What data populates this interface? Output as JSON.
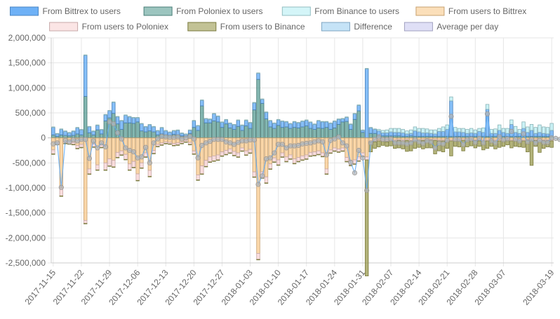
{
  "chart_data": {
    "type": "bar",
    "title": "",
    "xlabel": "",
    "ylabel": "",
    "ylim": [
      -2500000,
      2000000
    ],
    "y_ticks": [
      -2500000,
      -2000000,
      -1500000,
      -1000000,
      -500000,
      0,
      500000,
      1000000,
      1500000,
      2000000
    ],
    "y_tick_labels": [
      "-2,500,000",
      "-2,000,000",
      "-1,500,000",
      "-1,000,000",
      "-500,000",
      "0",
      "500,000",
      "1,000,000",
      "1,500,000",
      "2,000,000"
    ],
    "x_tick_labels": [
      "2017-11-15",
      "2017-11-22",
      "2017-11-29",
      "2017-12-06",
      "2017-12-13",
      "2017-12-20",
      "2017-12-27",
      "2018-01-03",
      "2018-01-10",
      "2018-01-17",
      "2018-01-24",
      "2018-01-31",
      "2018-02-07",
      "2018-02-14",
      "2018-02-21",
      "2018-02-28",
      "2018-03-07",
      "2018-03-19"
    ],
    "x_tick_days": [
      0,
      7,
      14,
      21,
      28,
      35,
      42,
      49,
      56,
      63,
      70,
      77,
      84,
      91,
      98,
      105,
      112,
      124
    ],
    "start_date": "2017-11-15",
    "days": 125,
    "grid": true,
    "legend_position": "top",
    "colors": {
      "from_bittrex": "#5ea9f5",
      "from_poloniex": "#5a9e95",
      "from_binance": "#b8eef3",
      "to_bittrex": "#f9c98c",
      "to_poloniex": "#f9d3d3",
      "to_binance": "#9a9a4e",
      "difference": "#9fd0f2",
      "average": "#c9c9f0",
      "difference_line": "#5ea9f5",
      "difference_point": "#b5b5b5"
    },
    "legend": [
      {
        "key": "from_bittrex",
        "label": "From Bittrex to users"
      },
      {
        "key": "from_poloniex",
        "label": "From Poloniex to users"
      },
      {
        "key": "from_binance",
        "label": "From Binance to users"
      },
      {
        "key": "to_bittrex",
        "label": "From users to Bittrex"
      },
      {
        "key": "to_poloniex",
        "label": "From users to Poloniex"
      },
      {
        "key": "to_binance",
        "label": "From users to Binance"
      },
      {
        "key": "difference",
        "label": "Difference"
      },
      {
        "key": "average",
        "label": "Average per day"
      }
    ],
    "series": [
      {
        "name": "From Bittrex to users",
        "key": "from_bittrex",
        "values": [
          150000,
          50000,
          110000,
          80000,
          60000,
          80000,
          120000,
          100000,
          820000,
          120000,
          70000,
          90000,
          80000,
          120000,
          140000,
          220000,
          140000,
          170000,
          150000,
          120000,
          110000,
          80000,
          140000,
          100000,
          120000,
          100000,
          80000,
          120000,
          80000,
          60000,
          70000,
          90000,
          50000,
          40000,
          60000,
          130000,
          90000,
          110000,
          80000,
          70000,
          140000,
          110000,
          100000,
          80000,
          90000,
          90000,
          120000,
          100000,
          110000,
          110000,
          140000,
          120000,
          80000,
          130000,
          120000,
          100000,
          110000,
          120000,
          100000,
          90000,
          110000,
          100000,
          110000,
          110000,
          120000,
          100000,
          140000,
          130000,
          110000,
          120000,
          130000,
          100000,
          60000,
          80000,
          100000,
          110000,
          110000,
          40000,
          1380000,
          110000,
          80000,
          100000,
          60000,
          60000,
          80000,
          70000,
          70000,
          70000,
          50000,
          50000,
          110000,
          90000,
          70000,
          70000,
          60000,
          50000,
          100000,
          100000,
          140000,
          710000,
          90000,
          90000,
          80000,
          60000,
          70000,
          60000,
          100000,
          80000,
          540000,
          60000,
          60000,
          120000,
          80000,
          60000,
          240000,
          80000,
          60000,
          160000,
          80000,
          120000,
          60000,
          80000,
          60000,
          50000,
          120000,
          150000,
          100000,
          150000
        ]
      },
      {
        "name": "From Poloniex to users",
        "key": "from_poloniex",
        "values": [
          60000,
          30000,
          60000,
          50000,
          40000,
          50000,
          80000,
          60000,
          830000,
          100000,
          60000,
          160000,
          80000,
          340000,
          400000,
          490000,
          280000,
          170000,
          300000,
          300000,
          290000,
          320000,
          140000,
          120000,
          140000,
          120000,
          60000,
          80000,
          60000,
          50000,
          70000,
          60000,
          40000,
          30000,
          90000,
          210000,
          150000,
          640000,
          300000,
          300000,
          340000,
          320000,
          210000,
          280000,
          200000,
          170000,
          230000,
          150000,
          240000,
          190000,
          560000,
          1170000,
          690000,
          380000,
          220000,
          190000,
          250000,
          210000,
          220000,
          190000,
          210000,
          200000,
          220000,
          240000,
          190000,
          170000,
          200000,
          190000,
          210000,
          170000,
          200000,
          270000,
          320000,
          330000,
          170000,
          370000,
          540000,
          110000,
          0,
          90000,
          90000,
          40000,
          40000,
          40000,
          40000,
          40000,
          40000,
          30000,
          30000,
          40000,
          30000,
          30000,
          30000,
          30000,
          30000,
          30000,
          30000,
          30000,
          30000,
          30000,
          30000,
          30000,
          30000,
          30000,
          30000,
          30000,
          30000,
          30000,
          30000,
          30000,
          30000,
          30000,
          30000,
          30000,
          30000,
          30000,
          30000,
          30000,
          30000,
          30000,
          30000,
          30000,
          30000,
          30000,
          30000,
          30000,
          30000,
          30000
        ]
      },
      {
        "name": "From Binance to users",
        "key": "from_binance",
        "values": [
          10000,
          10000,
          10000,
          10000,
          10000,
          10000,
          10000,
          10000,
          10000,
          10000,
          10000,
          10000,
          10000,
          10000,
          10000,
          10000,
          10000,
          10000,
          10000,
          10000,
          10000,
          10000,
          10000,
          10000,
          10000,
          10000,
          10000,
          10000,
          10000,
          10000,
          10000,
          10000,
          10000,
          10000,
          10000,
          10000,
          10000,
          10000,
          10000,
          10000,
          10000,
          10000,
          10000,
          10000,
          10000,
          10000,
          10000,
          10000,
          10000,
          10000,
          10000,
          10000,
          10000,
          10000,
          10000,
          10000,
          10000,
          10000,
          10000,
          10000,
          10000,
          10000,
          10000,
          10000,
          10000,
          10000,
          10000,
          10000,
          10000,
          10000,
          10000,
          10000,
          10000,
          10000,
          10000,
          10000,
          10000,
          10000,
          10000,
          10000,
          10000,
          30000,
          50000,
          60000,
          70000,
          80000,
          80000,
          70000,
          60000,
          70000,
          80000,
          70000,
          90000,
          80000,
          70000,
          80000,
          60000,
          90000,
          90000,
          80000,
          90000,
          70000,
          80000,
          80000,
          90000,
          70000,
          60000,
          90000,
          100000,
          80000,
          90000,
          110000,
          80000,
          100000,
          90000,
          120000,
          80000,
          130000,
          110000,
          120000,
          120000,
          150000,
          130000,
          130000,
          140000,
          110000,
          100000,
          130000,
          140000
        ]
      },
      {
        "name": "From users to Bittrex",
        "key": "to_bittrex",
        "values": [
          -240000,
          -90000,
          -1000000,
          -70000,
          -80000,
          -90000,
          -150000,
          -130000,
          -1650000,
          -620000,
          -120000,
          -540000,
          -130000,
          -500000,
          -420000,
          -450000,
          -290000,
          -260000,
          -330000,
          -520000,
          -470000,
          -720000,
          -500000,
          -300000,
          -650000,
          -250000,
          -130000,
          -100000,
          -80000,
          -90000,
          -110000,
          -100000,
          -80000,
          -50000,
          -90000,
          -260000,
          -740000,
          -560000,
          -450000,
          -380000,
          -360000,
          -340000,
          -280000,
          -250000,
          -220000,
          -270000,
          -300000,
          -200000,
          -260000,
          -230000,
          -680000,
          -2310000,
          -680000,
          -780000,
          -520000,
          -400000,
          -440000,
          -300000,
          -380000,
          -340000,
          -420000,
          -390000,
          -360000,
          -340000,
          -290000,
          -280000,
          -260000,
          -300000,
          -620000,
          -240000,
          -200000,
          -220000,
          -200000,
          -390000,
          -460000,
          -440000,
          -380000,
          -300000,
          -380000,
          -60000,
          -60000,
          -40000,
          -50000,
          -60000,
          -40000,
          -40000,
          -30000,
          -40000,
          -30000,
          -50000,
          -40000,
          -40000,
          -30000,
          -30000,
          -30000,
          -30000,
          -40000,
          -40000,
          -40000,
          -40000,
          -40000,
          -40000,
          -30000,
          -30000,
          -40000,
          -40000,
          -40000,
          -40000,
          -40000,
          -30000,
          -40000,
          -40000,
          -40000,
          -30000,
          -40000,
          -40000,
          -40000,
          -40000,
          -30000,
          -30000,
          -30000,
          -40000,
          -40000,
          -40000,
          -40000,
          -30000,
          -30000,
          -40000
        ]
      },
      {
        "name": "From users to Poloniex",
        "key": "to_poloniex",
        "values": [
          -80000,
          -40000,
          -160000,
          -40000,
          -40000,
          -40000,
          -60000,
          -60000,
          -60000,
          -100000,
          -60000,
          -100000,
          -60000,
          -140000,
          -140000,
          -130000,
          -100000,
          -80000,
          -100000,
          -120000,
          -120000,
          -130000,
          -100000,
          -80000,
          -120000,
          -60000,
          -40000,
          -40000,
          -30000,
          -30000,
          -40000,
          -40000,
          -30000,
          -30000,
          -40000,
          -60000,
          -100000,
          -160000,
          -120000,
          -100000,
          -100000,
          -100000,
          -80000,
          -80000,
          -80000,
          -80000,
          -80000,
          -60000,
          -80000,
          -70000,
          -100000,
          -120000,
          -120000,
          -120000,
          -100000,
          -80000,
          -100000,
          -80000,
          -90000,
          -80000,
          -90000,
          -80000,
          -80000,
          -80000,
          -70000,
          -70000,
          -70000,
          -70000,
          -100000,
          -60000,
          -60000,
          -60000,
          -60000,
          -80000,
          -90000,
          -80000,
          -80000,
          -70000,
          -60000,
          -20000,
          -20000,
          -20000,
          -20000,
          -20000,
          -20000,
          -20000,
          -20000,
          -20000,
          -20000,
          -20000,
          -20000,
          -20000,
          -20000,
          -20000,
          -20000,
          -20000,
          -20000,
          -20000,
          -20000,
          -20000,
          -20000,
          -20000,
          -20000,
          -20000,
          -20000,
          -20000,
          -20000,
          -20000,
          -20000,
          -20000,
          -20000,
          -20000,
          -20000,
          -20000,
          -20000,
          -20000,
          -20000,
          -20000,
          -20000,
          -20000,
          -20000,
          -20000,
          -20000,
          -20000,
          -20000
        ]
      },
      {
        "name": "From users to Binance",
        "key": "to_binance",
        "values": [
          -10000,
          -10000,
          -10000,
          -10000,
          -10000,
          -10000,
          -10000,
          -10000,
          -10000,
          -10000,
          -10000,
          -10000,
          -10000,
          -10000,
          -10000,
          -10000,
          -10000,
          -10000,
          -10000,
          -10000,
          -10000,
          -10000,
          -10000,
          -10000,
          -10000,
          -10000,
          -10000,
          -10000,
          -10000,
          -10000,
          -10000,
          -10000,
          -10000,
          -10000,
          -10000,
          -10000,
          -10000,
          -10000,
          -10000,
          -10000,
          -10000,
          -10000,
          -10000,
          -10000,
          -10000,
          -10000,
          -10000,
          -10000,
          -10000,
          -10000,
          -10000,
          -10000,
          -10000,
          -10000,
          -10000,
          -10000,
          -10000,
          -10000,
          -10000,
          -10000,
          -10000,
          -10000,
          -10000,
          -10000,
          -10000,
          -10000,
          -10000,
          -10000,
          -10000,
          -10000,
          -10000,
          -10000,
          -10000,
          -10000,
          -10000,
          -10000,
          -10000,
          -10000,
          -2320000,
          -200000,
          -130000,
          -120000,
          -80000,
          -90000,
          -100000,
          -150000,
          -150000,
          -160000,
          -220000,
          -190000,
          -150000,
          -130000,
          -170000,
          -150000,
          -150000,
          -270000,
          -200000,
          -220000,
          -150000,
          -300000,
          -110000,
          -120000,
          -210000,
          -130000,
          -100000,
          -140000,
          -110000,
          -180000,
          -150000,
          -120000,
          -160000,
          -130000,
          -110000,
          -90000,
          -140000,
          -110000,
          -120000,
          -130000,
          -230000,
          -500000,
          -120000,
          -230000,
          -150000,
          -120000,
          -130000,
          -200000,
          -160000,
          -210000
        ]
      },
      {
        "name": "Difference",
        "key": "difference",
        "values": [
          -120000,
          -100000,
          -990000,
          -50000,
          -80000,
          -40000,
          -60000,
          -30000,
          -30000,
          -410000,
          -60000,
          -200000,
          -100000,
          -180000,
          320000,
          280000,
          100000,
          -20000,
          -200000,
          -250000,
          -280000,
          -400000,
          -380000,
          -190000,
          -500000,
          -100000,
          -20000,
          30000,
          20000,
          10000,
          10000,
          20000,
          -20000,
          0,
          30000,
          -20000,
          -400000,
          -150000,
          -100000,
          -70000,
          -30000,
          -30000,
          -30000,
          -80000,
          -100000,
          -130000,
          -90000,
          -60000,
          -60000,
          -40000,
          -40000,
          -930000,
          -760000,
          -420000,
          -400000,
          -300000,
          -130000,
          -130000,
          -200000,
          -160000,
          -160000,
          -150000,
          -120000,
          -110000,
          -100000,
          -80000,
          -60000,
          -80000,
          -340000,
          -50000,
          -20000,
          20000,
          -100000,
          -160000,
          -490000,
          -700000,
          -250000,
          -400000,
          -1050000,
          -100000,
          -30000,
          20000,
          -30000,
          -30000,
          -20000,
          -100000,
          -100000,
          -100000,
          -120000,
          -100000,
          -40000,
          -80000,
          -110000,
          -60000,
          -80000,
          -200000,
          -110000,
          -120000,
          -50000,
          430000,
          -30000,
          -30000,
          -130000,
          -40000,
          -20000,
          -90000,
          -10000,
          -100000,
          480000,
          -60000,
          -100000,
          20000,
          -40000,
          -20000,
          130000,
          -30000,
          -60000,
          80000,
          -80000,
          -30000,
          -100000,
          -50000,
          -90000,
          -90000,
          0,
          -10000,
          -30000,
          -40000
        ]
      },
      {
        "name": "Average per day",
        "key": "average",
        "values": []
      }
    ]
  }
}
